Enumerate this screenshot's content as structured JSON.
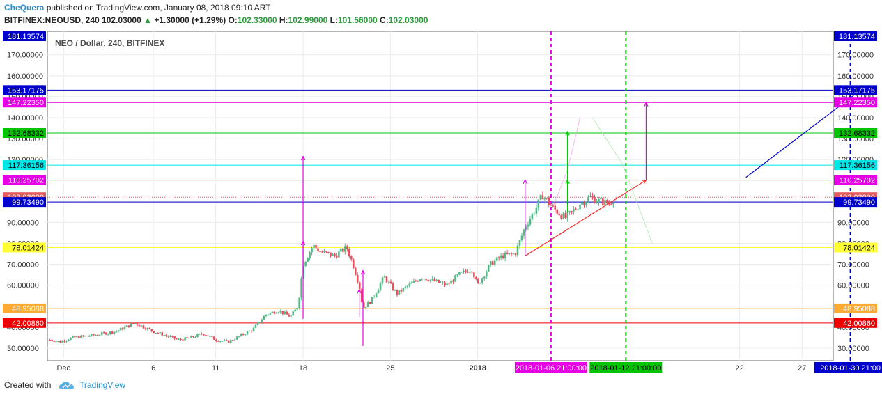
{
  "header": {
    "author": "CheQuera",
    "published": "published on TradingView.com, January 08, 2018 09:10 ART",
    "symbol": "BITFINEX:NEOUSD, 240",
    "last": "102.03000",
    "change": "+1.30000 (+1.29%)",
    "o_label": "O:",
    "o_value": "102.33000",
    "h_label": "H:",
    "h_value": "102.99000",
    "l_label": "L:",
    "l_value": "101.56000",
    "c_label": "C:",
    "c_value": "102.03000"
  },
  "footer": {
    "created_with": "Created with",
    "brand": "TradingView"
  },
  "colors": {
    "up": "#53b987",
    "down": "#eb4d5c",
    "accent": "#2a8ec8"
  },
  "chart_data": {
    "type": "candlestick",
    "title": "NEO / Dollar, 240, BITFINEX",
    "ylim": [
      24.0,
      181.2
    ],
    "xlim_days": [
      -3.5,
      59.5
    ],
    "x_origin_label": "Dec 1, 2017 (day 0)",
    "x_ticks": [
      {
        "day": -2.2,
        "label": "Dec"
      },
      {
        "day": 5,
        "label": "6"
      },
      {
        "day": 10,
        "label": "11"
      },
      {
        "day": 17,
        "label": "18"
      },
      {
        "day": 24,
        "label": "25"
      },
      {
        "day": 31,
        "label": "2018",
        "bold": true
      },
      {
        "day": 52,
        "label": "22"
      },
      {
        "day": 57,
        "label": "27"
      }
    ],
    "y_ticks": [
      30,
      40,
      50,
      60,
      70,
      80,
      90,
      100,
      110,
      120,
      130,
      140,
      150,
      160,
      170
    ],
    "y_tick_labels": [
      "30.00000",
      "40.00000",
      "50.00000",
      "60.00000",
      "70.00000",
      "80.00000",
      "90.00000",
      "100.00000",
      "110.00000",
      "120.00000",
      "130.00000",
      "140.00000",
      "150.00000",
      "160.00000",
      "170.00000"
    ],
    "price_path": [
      [
        -3.3,
        34
      ],
      [
        -2.5,
        33
      ],
      [
        -1.5,
        35
      ],
      [
        0,
        36
      ],
      [
        2,
        38
      ],
      [
        3.5,
        42
      ],
      [
        5,
        38
      ],
      [
        6,
        36
      ],
      [
        7,
        34
      ],
      [
        8,
        35
      ],
      [
        9,
        37
      ],
      [
        10,
        34
      ],
      [
        11,
        33
      ],
      [
        12,
        36
      ],
      [
        13,
        39
      ],
      [
        14,
        46
      ],
      [
        15,
        48
      ],
      [
        16,
        45
      ],
      [
        16.6,
        50
      ],
      [
        17,
        70
      ],
      [
        17.8,
        79
      ],
      [
        18.4,
        76
      ],
      [
        19.5,
        74
      ],
      [
        20.5,
        78
      ],
      [
        21,
        70
      ],
      [
        21.5,
        60
      ],
      [
        21.8,
        49
      ],
      [
        22.5,
        53
      ],
      [
        23.5,
        64
      ],
      [
        24.5,
        56
      ],
      [
        25.5,
        60
      ],
      [
        26.5,
        64
      ],
      [
        27.5,
        62
      ],
      [
        28.5,
        60
      ],
      [
        29.5,
        65
      ],
      [
        30.5,
        68
      ],
      [
        31,
        60
      ],
      [
        32,
        70
      ],
      [
        33,
        74
      ],
      [
        34,
        75
      ],
      [
        34.8,
        88
      ],
      [
        35.5,
        95
      ],
      [
        36.2,
        103
      ],
      [
        37,
        97
      ],
      [
        38,
        92
      ],
      [
        38.6,
        95
      ],
      [
        39.2,
        99
      ],
      [
        40,
        102
      ],
      [
        40.8,
        100
      ],
      [
        41.5,
        99
      ],
      [
        42,
        102
      ]
    ],
    "h_levels": [
      {
        "value": 181.13574,
        "label": "181.13574",
        "color": "#0000cc",
        "text_color": "#ffffff",
        "line": false
      },
      {
        "value": 153.17175,
        "label": "153.17175",
        "color": "#0000cc",
        "text_color": "#ffffff",
        "line": true
      },
      {
        "value": 147.2235,
        "label": "147.22350",
        "color": "#e600e6",
        "text_color": "#ffffff",
        "line": true
      },
      {
        "value": 132.68332,
        "label": "132.68332",
        "color": "#00c400",
        "text_color": "#000000",
        "line": true
      },
      {
        "value": 117.36156,
        "label": "117.36156",
        "color": "#00e5e5",
        "text_color": "#000000",
        "line": true
      },
      {
        "value": 110.25702,
        "label": "110.25702",
        "color": "#e600e6",
        "text_color": "#ffffff",
        "line": true
      },
      {
        "value": 102.03,
        "label": "102.03000",
        "color": "#e05a5a",
        "text_color": "#ffffff",
        "line": "dotted"
      },
      {
        "value": 99.7349,
        "label": "99.73490",
        "color": "#0000cc",
        "text_color": "#ffffff",
        "line": true
      },
      {
        "value": 78.01424,
        "label": "78.01424",
        "color": "#ffff33",
        "text_color": "#000000",
        "line": true
      },
      {
        "value": 48.95088,
        "label": "48.95088",
        "color": "#ffaa33",
        "text_color": "#ffffff",
        "line": true
      },
      {
        "value": 42.0086,
        "label": "42.00860",
        "color": "#ee0000",
        "text_color": "#ffffff",
        "line": true
      }
    ],
    "v_lines": [
      {
        "day": 36.875,
        "label": "2018-01-06 21:00:00",
        "color": "#e600e6"
      },
      {
        "day": 42.875,
        "label": "2018-01-12 21:00:00",
        "color": "#00c400"
      },
      {
        "day": 60.875,
        "label": "2018-01-30 21:00",
        "color": "#0000cc"
      }
    ],
    "arrows": [
      {
        "x1": 17,
        "y1": 44,
        "x2": 17,
        "y2": 121.5,
        "color": "#e600e6"
      },
      {
        "x1": 17,
        "y1": 66,
        "x2": 17,
        "y2": 81,
        "color": "#e600e6"
      },
      {
        "x1": 21.8,
        "y1": 31,
        "x2": 21.8,
        "y2": 67,
        "color": "#e600e6"
      },
      {
        "x1": 21.5,
        "y1": 45,
        "x2": 21.5,
        "y2": 58,
        "color": "#e600e6"
      },
      {
        "x1": 34.8,
        "y1": 74,
        "x2": 34.8,
        "y2": 110.3,
        "color": "#e600e6"
      },
      {
        "x1": 38.2,
        "y1": 95,
        "x2": 38.2,
        "y2": 133.3,
        "color": "#00c400"
      },
      {
        "x1": 38.2,
        "y1": 98,
        "x2": 38.2,
        "y2": 110.3,
        "color": "#00c400"
      },
      {
        "x1": 44.5,
        "y1": 110.2,
        "x2": 44.5,
        "y2": 147.2,
        "color": "#e600e6"
      },
      {
        "x1": 34.8,
        "y1": 74,
        "x2": 44.5,
        "y2": 110.2,
        "color": "#ee3333"
      },
      {
        "x1": 52.5,
        "y1": 111.5,
        "x2": 61.5,
        "y2": 152.3,
        "color": "#0000cc"
      }
    ],
    "faint_lines": [
      {
        "points": [
          [
            37,
            97
          ],
          [
            38.2,
            115
          ],
          [
            39.2,
            140
          ]
        ],
        "color": "#f4b6f4"
      },
      {
        "points": [
          [
            40.2,
            140
          ],
          [
            42.6,
            118
          ],
          [
            45,
            80
          ]
        ],
        "color": "#b9ecb9"
      }
    ]
  }
}
